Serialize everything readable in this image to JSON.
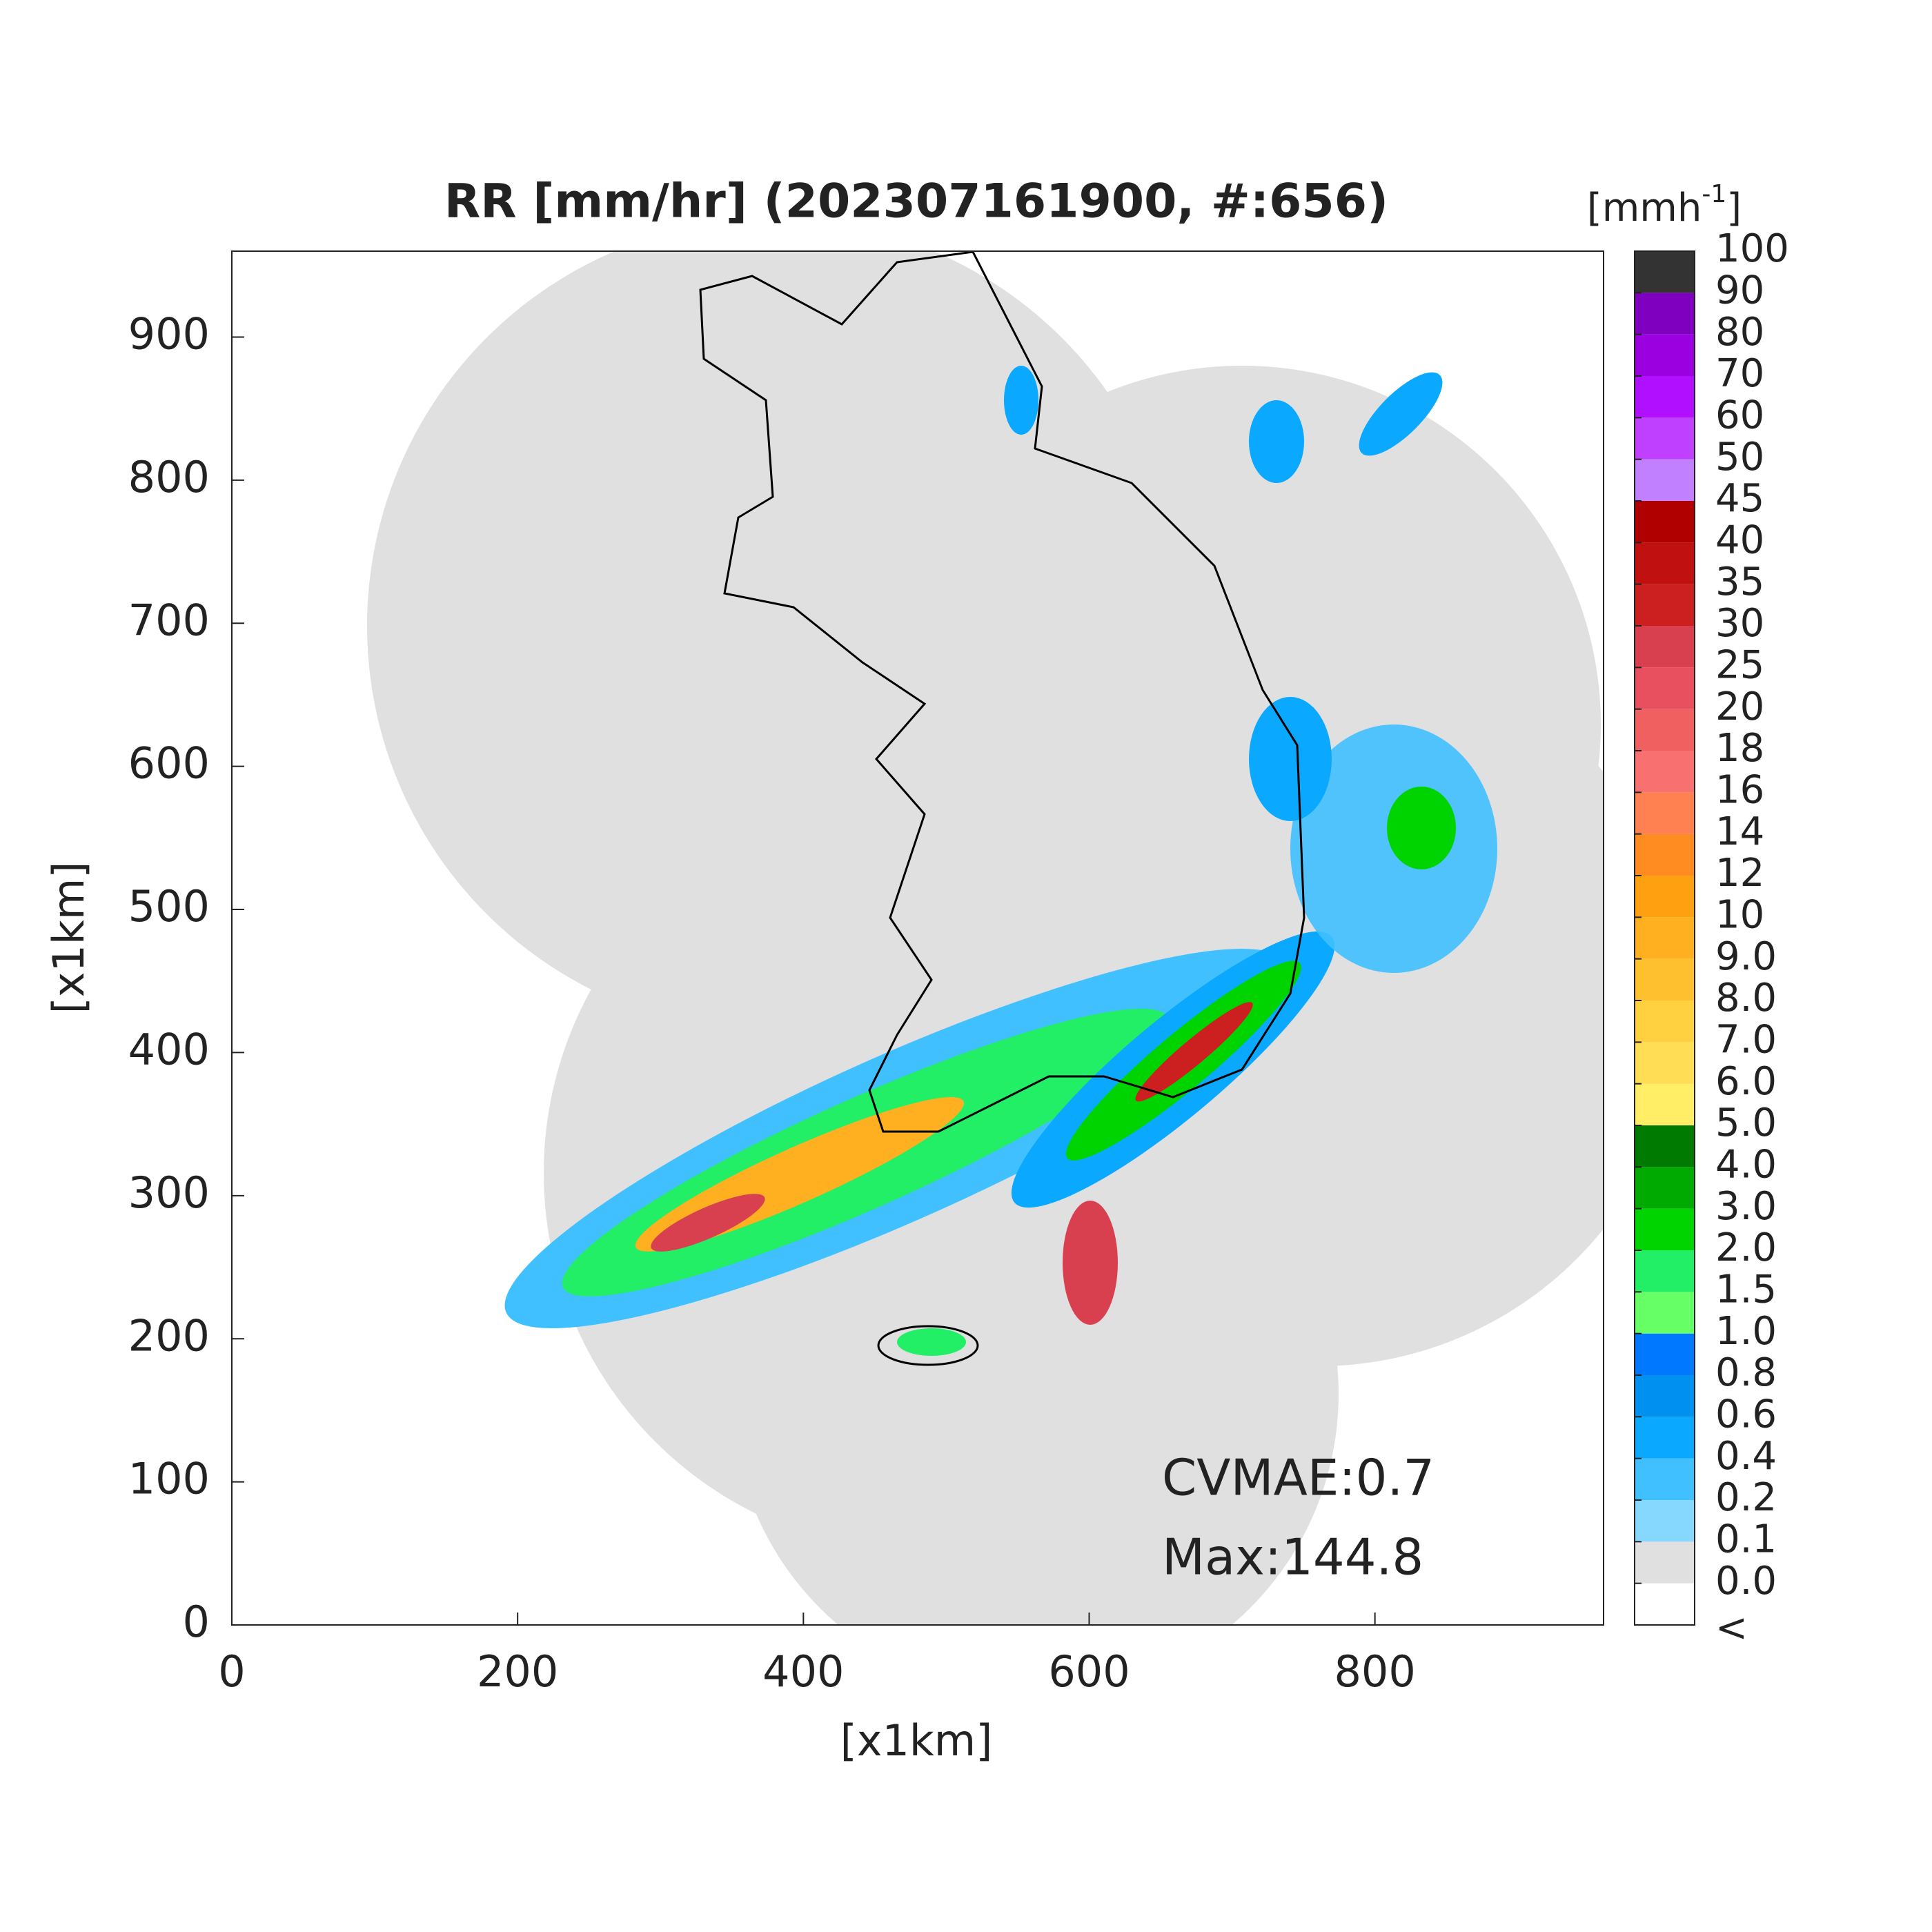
{
  "chart_data": {
    "type": "radar-map",
    "title": "RR [mm/hr] (202307161900, #:656)",
    "xlabel": "[x1km]",
    "ylabel": "[x1km]",
    "xlim": [
      0,
      960
    ],
    "ylim": [
      0,
      960
    ],
    "xticks": [
      0,
      200,
      400,
      600,
      800
    ],
    "yticks": [
      0,
      100,
      200,
      300,
      400,
      500,
      600,
      700,
      800,
      900
    ],
    "annotations": [
      "CVMAE:0.7",
      "Max:144.8"
    ],
    "colorbar": {
      "label": {
        "base": "[mmh",
        "exponent": "-1",
        "close": "]"
      },
      "levels": [
        "<",
        {
          "value": 0,
          "label": "0.0"
        },
        0.1,
        0.2,
        0.4,
        0.6,
        0.8,
        {
          "value": 1,
          "label": "1.0"
        },
        1.5,
        {
          "value": 2,
          "label": "2.0"
        },
        {
          "value": 3,
          "label": "3.0"
        },
        {
          "value": 4,
          "label": "4.0"
        },
        {
          "value": 5,
          "label": "5.0"
        },
        {
          "value": 6,
          "label": "6.0"
        },
        {
          "value": 7,
          "label": "7.0"
        },
        {
          "value": 8,
          "label": "8.0"
        },
        {
          "value": 9,
          "label": "9.0"
        },
        10,
        12,
        14,
        16,
        18,
        20,
        25,
        30,
        35,
        40,
        45,
        50,
        60,
        70,
        80,
        90,
        100
      ],
      "colors": [
        "#ffffff",
        "#e0e0e0",
        "#87d8ff",
        "#40c0ff",
        "#0aa8ff",
        "#0090f0",
        "#0078ff",
        "#66ff66",
        "#22ee66",
        "#00d400",
        "#00aa00",
        "#007a00",
        "#ffee66",
        "#ffdd55",
        "#ffd040",
        "#ffc030",
        "#ffb020",
        "#ffa010",
        "#ff8c20",
        "#ff8050",
        "#f87070",
        "#f06060",
        "#e85060",
        "#d84050",
        "#cc2020",
        "#c01010",
        "#b00000",
        "#c080ff",
        "#c040ff",
        "#b010ff",
        "#9a00e0",
        "#8000c0",
        "#333333"
      ]
    }
  }
}
